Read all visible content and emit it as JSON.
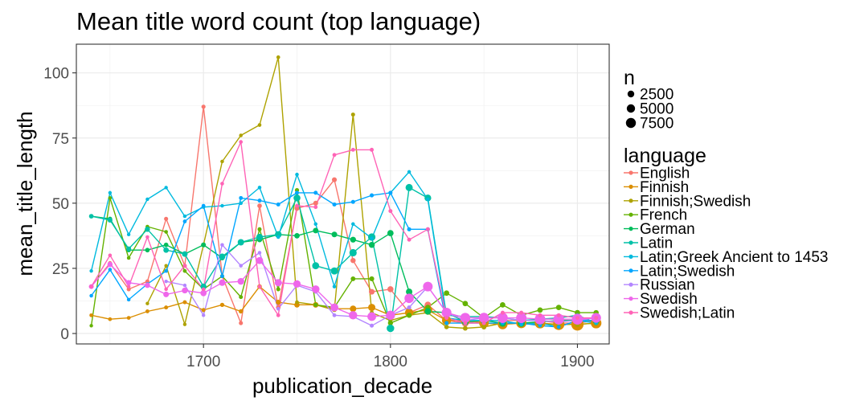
{
  "chart_data": {
    "type": "line",
    "title": "Mean title word count (top language)",
    "xlabel": "publication_decade",
    "ylabel": "mean_title_length",
    "xlim": [
      1632,
      1917
    ],
    "ylim": [
      -4,
      111
    ],
    "x_ticks": [
      1700,
      1800,
      1900
    ],
    "y_ticks": [
      0,
      25,
      50,
      75,
      100
    ],
    "grid": true,
    "legend_placement": "right",
    "size_legend": {
      "title": "n",
      "entries": [
        {
          "label": "2500",
          "value": 2500
        },
        {
          "label": "5000",
          "value": 5000
        },
        {
          "label": "7500",
          "value": 7500
        }
      ]
    },
    "color_legend_title": "language",
    "series": [
      {
        "name": "English",
        "color": "#F8766D",
        "x": [
          1640,
          1650,
          1660,
          1670,
          1680,
          1690,
          1700,
          1710,
          1720,
          1730,
          1740,
          1750,
          1760,
          1770,
          1780,
          1790,
          1800,
          1810,
          1820,
          1830,
          1840,
          1850,
          1860,
          1870,
          1880,
          1890,
          1900,
          1910
        ],
        "y": [
          18,
          27,
          17,
          20,
          44,
          26,
          87,
          22,
          4,
          49,
          10,
          48,
          50,
          59,
          28,
          16,
          17,
          8,
          11,
          5,
          4,
          5,
          5,
          5,
          5,
          4,
          4,
          5
        ],
        "n": [
          100,
          100,
          100,
          100,
          100,
          100,
          100,
          100,
          100,
          200,
          200,
          300,
          300,
          300,
          400,
          600,
          800,
          900,
          1000,
          1200,
          1400,
          1500,
          1800,
          2200,
          2600,
          3000,
          3200,
          2000
        ]
      },
      {
        "name": "Finnish",
        "color": "#DB8E00",
        "x": [
          1640,
          1650,
          1660,
          1670,
          1680,
          1690,
          1700,
          1710,
          1720,
          1730,
          1740,
          1750,
          1760,
          1770,
          1780,
          1790,
          1800,
          1810,
          1820,
          1830,
          1840,
          1850,
          1860,
          1870,
          1880,
          1890,
          1900,
          1910
        ],
        "y": [
          7,
          5.5,
          6,
          8.5,
          10,
          12,
          9,
          11,
          8.5,
          18,
          12,
          11,
          11,
          9.5,
          9.5,
          10,
          7,
          8,
          9,
          5,
          5,
          4,
          3.5,
          4,
          4,
          3.5,
          3.5,
          4
        ],
        "n": [
          50,
          50,
          50,
          60,
          70,
          80,
          100,
          120,
          150,
          200,
          300,
          500,
          600,
          800,
          1000,
          1500,
          2000,
          2500,
          3000,
          3200,
          3500,
          3800,
          4000,
          4500,
          5000,
          6000,
          7500,
          5000
        ]
      },
      {
        "name": "Finnish;Swedish",
        "color": "#AEA200",
        "x": [
          1670,
          1680,
          1690,
          1700,
          1710,
          1720,
          1730,
          1740,
          1750,
          1760,
          1770,
          1780,
          1790,
          1800,
          1810,
          1820,
          1830,
          1840,
          1850,
          1860,
          1870,
          1880,
          1890,
          1900,
          1910
        ],
        "y": [
          11.5,
          26,
          3.5,
          34,
          66,
          76,
          80,
          106,
          12,
          11,
          9,
          84,
          8,
          5,
          7,
          8,
          2.5,
          2,
          2.5,
          4,
          4,
          3.5,
          3.5,
          3.5,
          4
        ],
        "n": [
          20,
          20,
          20,
          30,
          30,
          30,
          40,
          40,
          50,
          60,
          70,
          80,
          90,
          100,
          120,
          150,
          200,
          250,
          300,
          350,
          400,
          450,
          500,
          500,
          400
        ]
      },
      {
        "name": "French",
        "color": "#64B200",
        "x": [
          1640,
          1650,
          1660,
          1670,
          1680,
          1690,
          1700,
          1710,
          1720,
          1730,
          1740,
          1750,
          1760,
          1770,
          1780,
          1790,
          1800,
          1810,
          1820,
          1830,
          1840,
          1850,
          1860,
          1870,
          1880,
          1890,
          1900,
          1910
        ],
        "y": [
          3,
          52,
          29,
          41,
          39,
          24,
          17,
          22,
          14,
          40,
          17,
          55,
          11,
          10,
          21,
          21,
          4,
          7,
          10,
          15.5,
          11.5,
          6,
          11,
          7,
          9,
          10,
          8,
          8
        ],
        "n": [
          20,
          30,
          30,
          40,
          40,
          50,
          60,
          70,
          80,
          90,
          100,
          120,
          150,
          200,
          250,
          300,
          350,
          400,
          450,
          500,
          500,
          500,
          500,
          500,
          500,
          500,
          500,
          400
        ]
      },
      {
        "name": "German",
        "color": "#00BD5C",
        "x": [
          1640,
          1650,
          1660,
          1670,
          1680,
          1690,
          1700,
          1710,
          1720,
          1730,
          1740,
          1750,
          1760,
          1770,
          1780,
          1790,
          1800,
          1810,
          1820,
          1830,
          1840,
          1850,
          1860,
          1870,
          1880,
          1890,
          1900,
          1910
        ],
        "y": [
          45,
          44,
          32,
          32,
          34,
          30.5,
          34,
          29,
          35,
          36,
          38,
          37.5,
          39.5,
          38,
          36,
          34,
          38.5,
          16,
          8.5,
          8,
          4.5,
          5,
          4,
          4,
          4.5,
          5,
          5,
          5
        ],
        "n": [
          100,
          150,
          150,
          200,
          200,
          250,
          300,
          300,
          350,
          400,
          450,
          500,
          550,
          600,
          700,
          800,
          900,
          1000,
          1100,
          1200,
          1300,
          1400,
          1500,
          1600,
          1700,
          1800,
          1900,
          1500
        ]
      },
      {
        "name": "Latin",
        "color": "#00C1A7",
        "x": [
          1640,
          1650,
          1660,
          1670,
          1680,
          1690,
          1700,
          1710,
          1720,
          1730,
          1740,
          1750,
          1760,
          1770,
          1780,
          1790,
          1800,
          1810,
          1820,
          1830,
          1840,
          1850,
          1860,
          1870,
          1880,
          1890,
          1900,
          1910
        ],
        "y": [
          45,
          43.5,
          32.5,
          40,
          32,
          30.5,
          18,
          29.5,
          35,
          37,
          38,
          52,
          26,
          24,
          31,
          37,
          2,
          56,
          52,
          7,
          6.5,
          6.5,
          6,
          5,
          5.5,
          6,
          7,
          4
        ],
        "n": [
          200,
          300,
          300,
          400,
          500,
          600,
          800,
          900,
          1000,
          1100,
          1200,
          1300,
          1400,
          1500,
          1600,
          1700,
          1800,
          1500,
          1200,
          800,
          500,
          300,
          200,
          150,
          100,
          100,
          100,
          80
        ]
      },
      {
        "name": "Latin;Greek Ancient to 1453",
        "color": "#00BADE",
        "x": [
          1640,
          1650,
          1660,
          1670,
          1680,
          1690,
          1700,
          1710,
          1720,
          1730,
          1740,
          1750,
          1760,
          1770,
          1780,
          1790,
          1800,
          1810,
          1820,
          1830,
          1840,
          1850,
          1860,
          1870,
          1880,
          1890,
          1900,
          1910
        ],
        "y": [
          24,
          54,
          38,
          51.5,
          56,
          45,
          48.5,
          49,
          50,
          56,
          37,
          61,
          42,
          18,
          42,
          36.5,
          54,
          62,
          51.5,
          6,
          5,
          5,
          5,
          3.5,
          4,
          2.5,
          5,
          4
        ],
        "n": [
          20,
          20,
          20,
          20,
          20,
          20,
          20,
          20,
          30,
          30,
          30,
          30,
          30,
          30,
          30,
          30,
          30,
          30,
          30,
          30,
          30,
          30,
          30,
          30,
          30,
          30,
          30,
          30
        ]
      },
      {
        "name": "Latin;Swedish",
        "color": "#00A6FF",
        "x": [
          1640,
          1650,
          1660,
          1670,
          1680,
          1690,
          1700,
          1710,
          1720,
          1730,
          1740,
          1750,
          1760,
          1770,
          1780,
          1790,
          1800,
          1810,
          1820,
          1830,
          1840,
          1850,
          1860,
          1870,
          1880,
          1890,
          1900,
          1910
        ],
        "y": [
          14.5,
          24.5,
          13,
          19,
          24,
          43,
          49,
          22,
          52,
          51,
          49.5,
          54,
          54,
          49.5,
          50.5,
          53,
          54,
          40,
          40,
          4,
          4,
          4,
          4,
          4,
          3,
          2.5,
          5,
          5
        ],
        "n": [
          30,
          30,
          30,
          40,
          40,
          50,
          50,
          60,
          60,
          70,
          70,
          80,
          80,
          90,
          90,
          100,
          100,
          100,
          100,
          80,
          60,
          50,
          40,
          40,
          30,
          30,
          30,
          30
        ]
      },
      {
        "name": "Russian",
        "color": "#B385FF",
        "x": [
          1680,
          1690,
          1700,
          1710,
          1720,
          1730,
          1740,
          1750,
          1760,
          1770,
          1780,
          1790,
          1800,
          1810,
          1820,
          1830,
          1840,
          1850,
          1860,
          1870,
          1880,
          1890,
          1900,
          1910
        ],
        "y": [
          20,
          18.5,
          7,
          34,
          26,
          31,
          9.5,
          18.5,
          16,
          7,
          6.5,
          3,
          7,
          10,
          18,
          8,
          5,
          6,
          6,
          5,
          5,
          4.5,
          5,
          6
        ],
        "n": [
          20,
          20,
          20,
          30,
          30,
          30,
          40,
          40,
          50,
          60,
          70,
          80,
          90,
          100,
          120,
          150,
          200,
          250,
          300,
          400,
          500,
          600,
          700,
          500
        ]
      },
      {
        "name": "Swedish",
        "color": "#EF67EB",
        "x": [
          1640,
          1650,
          1660,
          1670,
          1680,
          1690,
          1700,
          1710,
          1720,
          1730,
          1740,
          1750,
          1760,
          1770,
          1780,
          1790,
          1800,
          1810,
          1820,
          1830,
          1840,
          1850,
          1860,
          1870,
          1880,
          1890,
          1900,
          1910
        ],
        "y": [
          18,
          26.5,
          19.5,
          18.5,
          15,
          16.5,
          15.5,
          19.5,
          20,
          28,
          19.5,
          19,
          17,
          10,
          7,
          6.5,
          7,
          13.5,
          18,
          8,
          6,
          6,
          6,
          6,
          5.5,
          5.5,
          5.5,
          6
        ],
        "n": [
          300,
          400,
          400,
          500,
          600,
          700,
          900,
          1000,
          1200,
          1400,
          1500,
          1700,
          1900,
          2100,
          2400,
          2800,
          3200,
          3500,
          3800,
          4000,
          4200,
          4400,
          4600,
          4800,
          5000,
          5200,
          5400,
          4000
        ]
      },
      {
        "name": "Swedish;Latin",
        "color": "#FF63B6",
        "x": [
          1640,
          1650,
          1660,
          1670,
          1680,
          1690,
          1700,
          1710,
          1720,
          1730,
          1740,
          1750,
          1760,
          1770,
          1780,
          1790,
          1800,
          1810,
          1820,
          1830,
          1840,
          1850,
          1860,
          1870,
          1880,
          1890,
          1900,
          1910
        ],
        "y": [
          18,
          30,
          18,
          37,
          17,
          26,
          17,
          57.5,
          73.5,
          18,
          7,
          49,
          48.5,
          68.5,
          70.5,
          70.5,
          47,
          36,
          40,
          6,
          4,
          4,
          8,
          8,
          7,
          7,
          6,
          6
        ],
        "n": [
          30,
          30,
          30,
          30,
          30,
          40,
          40,
          40,
          40,
          50,
          50,
          50,
          60,
          60,
          60,
          70,
          70,
          70,
          80,
          80,
          80,
          80,
          80,
          80,
          80,
          80,
          80,
          80
        ]
      }
    ]
  }
}
